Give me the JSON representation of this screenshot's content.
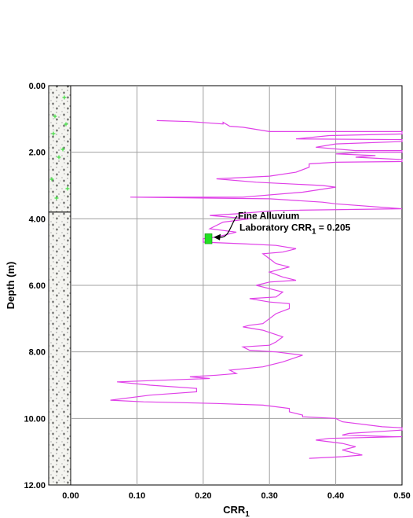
{
  "chart_data": {
    "type": "line",
    "xlabel": "CRR",
    "xlabel_subscript": "1",
    "ylabel": "Depth (m)",
    "xlim": [
      0,
      0.5
    ],
    "ylim": [
      0,
      12
    ],
    "y_inverted": true,
    "grid": true,
    "line_color": "#e040e8",
    "x_ticks": [
      "0.00",
      "0.10",
      "0.20",
      "0.30",
      "0.40",
      "0.50"
    ],
    "y_ticks": [
      "0.00",
      "2.00",
      "4.00",
      "6.00",
      "8.00",
      "10.00",
      "12.00"
    ],
    "series": [
      {
        "points": [
          [
            0.13,
            1.05
          ],
          [
            0.18,
            1.08
          ],
          [
            0.23,
            1.15
          ],
          [
            0.23,
            1.1
          ],
          [
            0.24,
            1.22
          ],
          [
            0.26,
            1.25
          ],
          [
            0.3,
            1.38
          ],
          [
            0.5,
            1.38
          ],
          [
            0.5,
            1.45
          ],
          [
            0.39,
            1.5
          ],
          [
            0.34,
            1.6
          ],
          [
            0.5,
            1.62
          ],
          [
            0.5,
            1.68
          ],
          [
            0.4,
            1.75
          ],
          [
            0.37,
            1.85
          ],
          [
            0.43,
            1.95
          ],
          [
            0.5,
            1.95
          ],
          [
            0.5,
            2.0
          ],
          [
            0.44,
            2.0
          ],
          [
            0.4,
            2.05
          ],
          [
            0.46,
            2.1
          ],
          [
            0.43,
            2.15
          ],
          [
            0.5,
            2.22
          ],
          [
            0.5,
            2.28
          ],
          [
            0.4,
            2.3
          ],
          [
            0.36,
            2.35
          ],
          [
            0.36,
            2.45
          ],
          [
            0.34,
            2.6
          ],
          [
            0.3,
            2.72
          ],
          [
            0.22,
            2.8
          ],
          [
            0.28,
            2.9
          ],
          [
            0.38,
            3.0
          ],
          [
            0.4,
            3.05
          ],
          [
            0.35,
            3.2
          ],
          [
            0.26,
            3.35
          ],
          [
            0.09,
            3.35
          ],
          [
            0.3,
            3.4
          ],
          [
            0.38,
            3.5
          ],
          [
            0.4,
            3.55
          ],
          [
            0.5,
            3.7
          ],
          [
            0.31,
            3.75
          ],
          [
            0.25,
            3.85
          ],
          [
            0.21,
            3.9
          ],
          [
            0.27,
            4.0
          ],
          [
            0.23,
            4.1
          ],
          [
            0.21,
            4.3
          ],
          [
            0.25,
            4.4
          ],
          [
            0.22,
            4.55
          ],
          [
            0.2,
            4.6
          ],
          [
            0.2,
            4.7
          ],
          [
            0.26,
            4.75
          ],
          [
            0.31,
            4.8
          ],
          [
            0.34,
            4.9
          ],
          [
            0.32,
            5.0
          ],
          [
            0.29,
            5.05
          ],
          [
            0.3,
            5.2
          ],
          [
            0.31,
            5.35
          ],
          [
            0.33,
            5.45
          ],
          [
            0.3,
            5.6
          ],
          [
            0.32,
            5.75
          ],
          [
            0.34,
            5.85
          ],
          [
            0.3,
            5.9
          ],
          [
            0.28,
            6.0
          ],
          [
            0.3,
            6.1
          ],
          [
            0.32,
            6.2
          ],
          [
            0.31,
            6.35
          ],
          [
            0.27,
            6.4
          ],
          [
            0.3,
            6.5
          ],
          [
            0.33,
            6.55
          ],
          [
            0.33,
            6.7
          ],
          [
            0.31,
            6.85
          ],
          [
            0.3,
            7.0
          ],
          [
            0.29,
            7.15
          ],
          [
            0.27,
            7.2
          ],
          [
            0.26,
            7.25
          ],
          [
            0.29,
            7.35
          ],
          [
            0.32,
            7.55
          ],
          [
            0.31,
            7.7
          ],
          [
            0.3,
            7.8
          ],
          [
            0.26,
            7.85
          ],
          [
            0.27,
            7.95
          ],
          [
            0.31,
            8.0
          ],
          [
            0.35,
            8.1
          ],
          [
            0.32,
            8.3
          ],
          [
            0.29,
            8.45
          ],
          [
            0.24,
            8.55
          ],
          [
            0.25,
            8.65
          ],
          [
            0.22,
            8.7
          ],
          [
            0.18,
            8.75
          ],
          [
            0.21,
            8.8
          ],
          [
            0.07,
            8.9
          ],
          [
            0.12,
            9.0
          ],
          [
            0.19,
            9.1
          ],
          [
            0.19,
            9.2
          ],
          [
            0.12,
            9.3
          ],
          [
            0.06,
            9.45
          ],
          [
            0.11,
            9.5
          ],
          [
            0.22,
            9.55
          ],
          [
            0.29,
            9.6
          ],
          [
            0.33,
            9.7
          ],
          [
            0.33,
            9.8
          ],
          [
            0.35,
            9.9
          ],
          [
            0.35,
            9.95
          ],
          [
            0.4,
            10.0
          ],
          [
            0.41,
            10.1
          ],
          [
            0.47,
            10.25
          ],
          [
            0.5,
            10.28
          ],
          [
            0.5,
            10.35
          ],
          [
            0.46,
            10.4
          ],
          [
            0.42,
            10.45
          ],
          [
            0.41,
            10.5
          ],
          [
            0.49,
            10.55
          ],
          [
            0.5,
            10.55
          ],
          [
            0.39,
            10.6
          ],
          [
            0.37,
            10.65
          ],
          [
            0.41,
            10.75
          ],
          [
            0.43,
            10.85
          ],
          [
            0.41,
            10.95
          ],
          [
            0.43,
            11.05
          ],
          [
            0.44,
            11.1
          ],
          [
            0.41,
            11.15
          ],
          [
            0.36,
            11.2
          ]
        ]
      }
    ],
    "annotation": {
      "line1": "Fine Alluvium",
      "line2_prefix": "Laboratory CRR",
      "line2_subscript": "1",
      "line2_suffix": " = 0.205",
      "marker_value": 0.205,
      "marker_depth_range": [
        4.45,
        4.75
      ],
      "marker_color": "#22e022"
    },
    "soil_column": {
      "boundary_depth": 3.8,
      "upper_pattern_color": "#44dd44"
    }
  }
}
